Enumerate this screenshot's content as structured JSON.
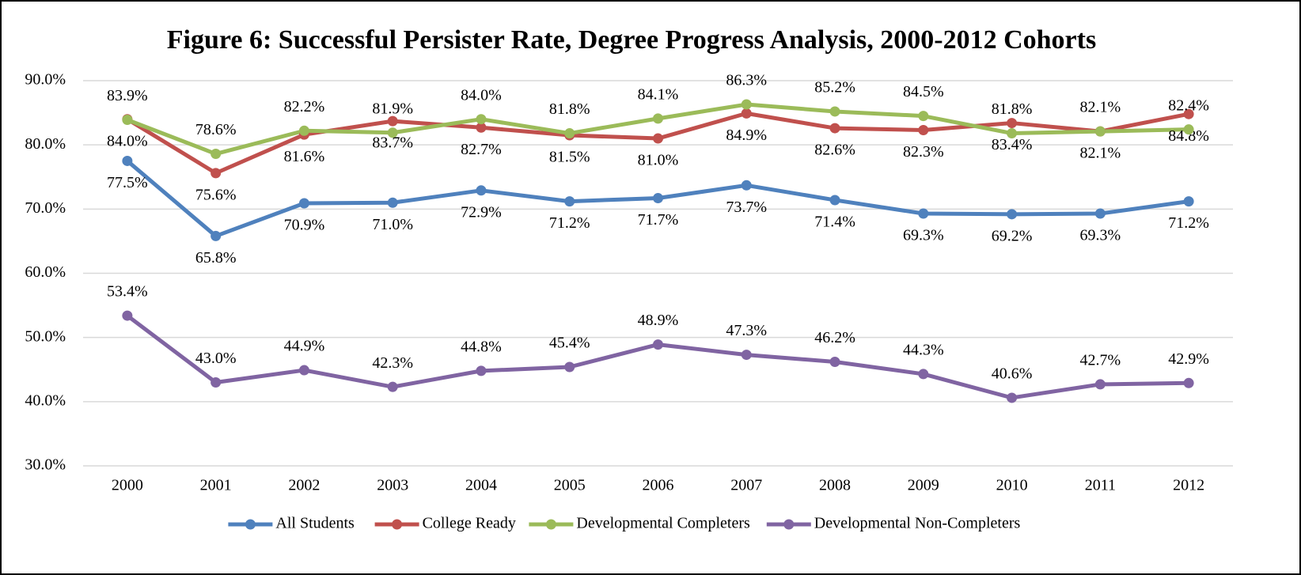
{
  "chart_data": {
    "type": "line",
    "title": "Figure 6: Successful Persister Rate, Degree Progress Analysis, 2000-2012 Cohorts",
    "categories": [
      "2000",
      "2001",
      "2002",
      "2003",
      "2004",
      "2005",
      "2006",
      "2007",
      "2008",
      "2009",
      "2010",
      "2011",
      "2012"
    ],
    "ylim": [
      30,
      90
    ],
    "yticks": [
      {
        "value": 30,
        "label": "30.0%"
      },
      {
        "value": 40,
        "label": "40.0%"
      },
      {
        "value": 50,
        "label": "50.0%"
      },
      {
        "value": 60,
        "label": "60.0%"
      },
      {
        "value": 70,
        "label": "70.0%"
      },
      {
        "value": 80,
        "label": "80.0%"
      },
      {
        "value": 90,
        "label": "90.0%"
      }
    ],
    "grid": true,
    "legend": "bottom",
    "series": [
      {
        "name": "All Students",
        "color": "#4f81bd",
        "values": [
          77.5,
          65.8,
          70.9,
          71.0,
          72.9,
          71.2,
          71.7,
          73.7,
          71.4,
          69.3,
          69.2,
          69.3,
          71.2
        ],
        "value_labels": [
          "77.5%",
          "65.8%",
          "70.9%",
          "71.0%",
          "72.9%",
          "71.2%",
          "71.7%",
          "73.7%",
          "71.4%",
          "69.3%",
          "69.2%",
          "69.3%",
          "71.2%"
        ]
      },
      {
        "name": "College Ready",
        "color": "#c0504d",
        "values": [
          84.0,
          75.6,
          81.6,
          83.7,
          82.7,
          81.5,
          81.0,
          84.9,
          82.6,
          82.3,
          83.4,
          82.1,
          84.8
        ],
        "value_labels": [
          "84.0%",
          "75.6%",
          "81.6%",
          "83.7%",
          "82.7%",
          "81.5%",
          "81.0%",
          "84.9%",
          "82.6%",
          "82.3%",
          "83.4%",
          "82.1%",
          "84.8%"
        ]
      },
      {
        "name": "Developmental Completers",
        "color": "#9bbb59",
        "values": [
          83.9,
          78.6,
          82.2,
          81.9,
          84.0,
          81.8,
          84.1,
          86.3,
          85.2,
          84.5,
          81.8,
          82.1,
          82.4
        ],
        "value_labels": [
          "83.9%",
          "78.6%",
          "82.2%",
          "81.9%",
          "84.0%",
          "81.8%",
          "84.1%",
          "86.3%",
          "85.2%",
          "84.5%",
          "81.8%",
          "82.1%",
          "82.4%"
        ]
      },
      {
        "name": "Developmental Non-Completers",
        "color": "#8064a2",
        "values": [
          53.4,
          43.0,
          44.9,
          42.3,
          44.8,
          45.4,
          48.9,
          47.3,
          46.2,
          44.3,
          40.6,
          42.7,
          42.9
        ],
        "value_labels": [
          "53.4%",
          "43.0%",
          "44.9%",
          "42.3%",
          "44.8%",
          "45.4%",
          "48.9%",
          "47.3%",
          "46.2%",
          "44.3%",
          "40.6%",
          "42.7%",
          "42.9%"
        ]
      }
    ]
  }
}
